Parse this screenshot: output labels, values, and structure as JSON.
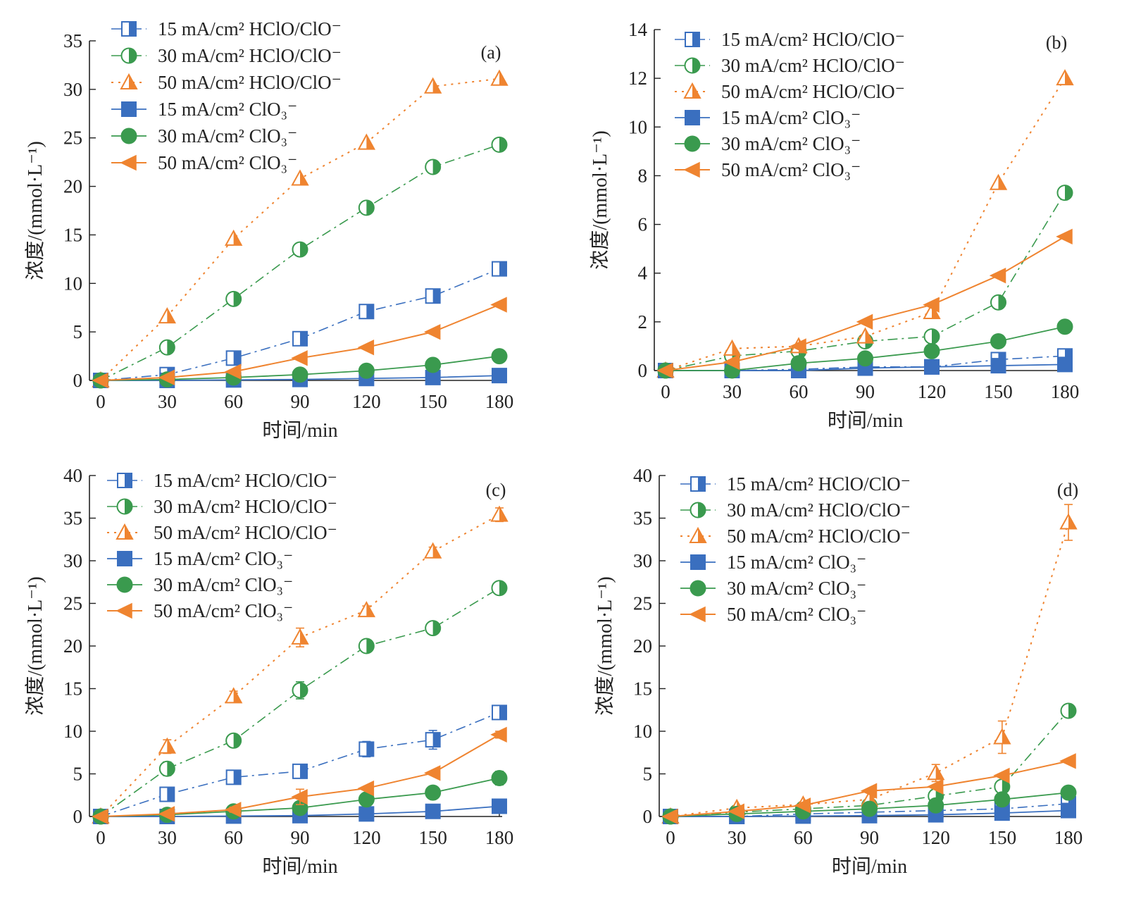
{
  "colors": {
    "blue": "#3a6fbf",
    "green": "#3a9a4e",
    "orange": "#ef8430",
    "axis": "#222222"
  },
  "chart_data": [
    {
      "type": "line",
      "panel_label": "(a)",
      "xlabel": "时间/min",
      "ylabel": "浓度/(mmol·L⁻¹)",
      "x": [
        0,
        30,
        60,
        90,
        120,
        150,
        180
      ],
      "x_ticks": [
        "0",
        "30",
        "60",
        "90",
        "120",
        "150",
        "180"
      ],
      "xlim": [
        0,
        180
      ],
      "ylim": [
        0,
        35
      ],
      "y_ticks": [
        "0",
        "5",
        "10",
        "15",
        "20",
        "25",
        "30",
        "35"
      ],
      "legend_position": "top-left",
      "series": [
        {
          "name": "15 mA/cm² HClO/ClO⁻",
          "values": [
            0,
            0.6,
            2.3,
            4.3,
            7.1,
            8.7,
            11.5
          ]
        },
        {
          "name": "30 mA/cm² HClO/ClO⁻",
          "values": [
            0,
            3.4,
            8.4,
            13.5,
            17.8,
            22.0,
            24.3
          ]
        },
        {
          "name": "50 mA/cm² HClO/ClO⁻",
          "values": [
            0,
            6.6,
            14.6,
            20.8,
            24.5,
            30.3,
            31.1
          ]
        },
        {
          "name": "15 mA/cm² ClO₃⁻",
          "values": [
            0,
            0,
            0.05,
            0.1,
            0.2,
            0.3,
            0.5
          ]
        },
        {
          "name": "30 mA/cm² ClO₃⁻",
          "values": [
            0,
            0.1,
            0.3,
            0.6,
            1.0,
            1.6,
            2.5
          ]
        },
        {
          "name": "50 mA/cm² ClO₃⁻",
          "values": [
            0,
            0.3,
            0.9,
            2.3,
            3.4,
            5.0,
            7.8
          ]
        }
      ]
    },
    {
      "type": "line",
      "panel_label": "(b)",
      "xlabel": "时间/min",
      "ylabel": "浓度/(mmol·L⁻¹)",
      "x": [
        0,
        30,
        60,
        90,
        120,
        150,
        180
      ],
      "x_ticks": [
        "0",
        "30",
        "60",
        "90",
        "120",
        "150",
        "180"
      ],
      "xlim": [
        0,
        180
      ],
      "ylim": [
        0,
        14
      ],
      "y_ticks": [
        "0",
        "2",
        "4",
        "6",
        "8",
        "10",
        "12",
        "14"
      ],
      "legend_position": "top-left",
      "series": [
        {
          "name": "15 mA/cm² HClO/ClO⁻",
          "values": [
            0,
            0,
            0.05,
            0.15,
            0.15,
            0.45,
            0.6
          ]
        },
        {
          "name": "30 mA/cm² HClO/ClO⁻",
          "values": [
            0,
            0.6,
            0.8,
            1.2,
            1.4,
            2.8,
            7.3
          ]
        },
        {
          "name": "50 mA/cm² HClO/ClO⁻",
          "values": [
            0,
            0.9,
            1.0,
            1.4,
            2.4,
            7.7,
            12.0
          ]
        },
        {
          "name": "15 mA/cm² ClO₃⁻",
          "values": [
            0,
            0,
            0,
            0.1,
            0.15,
            0.2,
            0.25
          ]
        },
        {
          "name": "30 mA/cm² ClO₃⁻",
          "values": [
            0,
            0,
            0.3,
            0.5,
            0.8,
            1.2,
            1.8
          ]
        },
        {
          "name": "50 mA/cm² ClO₃⁻",
          "values": [
            0,
            0.35,
            1.0,
            2.0,
            2.7,
            3.9,
            5.5
          ]
        }
      ]
    },
    {
      "type": "line",
      "panel_label": "(c)",
      "xlabel": "时间/min",
      "ylabel": "浓度/(mmol·L⁻¹)",
      "x": [
        0,
        30,
        60,
        90,
        120,
        150,
        180
      ],
      "x_ticks": [
        "0",
        "30",
        "60",
        "90",
        "120",
        "150",
        "180"
      ],
      "xlim": [
        0,
        180
      ],
      "ylim": [
        0,
        40
      ],
      "y_ticks": [
        "0",
        "5",
        "10",
        "15",
        "20",
        "25",
        "30",
        "35",
        "40"
      ],
      "legend_position": "top-left",
      "series": [
        {
          "name": "15 mA/cm² HClO/ClO⁻",
          "values": [
            0,
            2.6,
            4.6,
            5.3,
            7.9,
            9.0,
            12.2
          ],
          "errors": [
            0,
            0.8,
            0.4,
            0.8,
            0.9,
            1.1,
            0.5
          ]
        },
        {
          "name": "30 mA/cm² HClO/ClO⁻",
          "values": [
            0,
            5.6,
            8.9,
            14.8,
            20.0,
            22.1,
            26.8
          ],
          "errors": [
            0,
            0.8,
            0.5,
            1.0,
            0.4,
            0.5,
            0.5
          ]
        },
        {
          "name": "50 mA/cm² HClO/ClO⁻",
          "values": [
            0,
            8.2,
            14.1,
            21.0,
            24.2,
            31.1,
            35.4
          ],
          "errors": [
            0,
            0.8,
            0.6,
            1.1,
            0.5,
            0.5,
            0.8
          ]
        },
        {
          "name": "15 mA/cm² ClO₃⁻",
          "values": [
            0,
            0,
            0.05,
            0.1,
            0.3,
            0.6,
            1.2
          ]
        },
        {
          "name": "30 mA/cm² ClO₃⁻",
          "values": [
            0,
            0.2,
            0.6,
            1.0,
            2.0,
            2.8,
            4.5
          ],
          "errors": [
            0,
            0,
            0,
            0,
            0,
            0.6,
            0.8
          ]
        },
        {
          "name": "50 mA/cm² ClO₃⁻",
          "values": [
            0,
            0.3,
            0.8,
            2.3,
            3.3,
            5.1,
            9.6
          ],
          "errors": [
            0,
            0,
            0.3,
            0.9,
            0,
            0,
            0.4
          ]
        }
      ]
    },
    {
      "type": "line",
      "panel_label": "(d)",
      "xlabel": "时间/min",
      "ylabel": "浓度/(mmol·L⁻¹)",
      "x": [
        0,
        30,
        60,
        90,
        120,
        150,
        180
      ],
      "x_ticks": [
        "0",
        "30",
        "60",
        "90",
        "120",
        "150",
        "180"
      ],
      "xlim": [
        0,
        180
      ],
      "ylim": [
        0,
        40
      ],
      "y_ticks": [
        "0",
        "5",
        "10",
        "15",
        "20",
        "25",
        "30",
        "35",
        "40"
      ],
      "legend_position": "top-left",
      "series": [
        {
          "name": "15 mA/cm² HClO/ClO⁻",
          "values": [
            0,
            0,
            0.3,
            0.5,
            0.7,
            0.9,
            1.5
          ]
        },
        {
          "name": "30 mA/cm² HClO/ClO⁻",
          "values": [
            0,
            0.5,
            0.9,
            1.3,
            2.4,
            3.5,
            12.4
          ],
          "errors": [
            0,
            0,
            0,
            0,
            0,
            0.4,
            0.4
          ]
        },
        {
          "name": "50 mA/cm² HClO/ClO⁻",
          "values": [
            0,
            1.0,
            1.4,
            2.0,
            5.1,
            9.3,
            34.5
          ],
          "errors": [
            0,
            0,
            0.3,
            0,
            1.0,
            1.9,
            2.1
          ]
        },
        {
          "name": "15 mA/cm² ClO₃⁻",
          "values": [
            0,
            0,
            0.05,
            0.1,
            0.2,
            0.4,
            0.7
          ]
        },
        {
          "name": "30 mA/cm² ClO₃⁻",
          "values": [
            0,
            0.3,
            0.6,
            0.9,
            1.3,
            2.0,
            2.8
          ]
        },
        {
          "name": "50 mA/cm² ClO₃⁻",
          "values": [
            0,
            0.6,
            1.3,
            3.0,
            3.5,
            4.8,
            6.5
          ]
        }
      ]
    }
  ]
}
